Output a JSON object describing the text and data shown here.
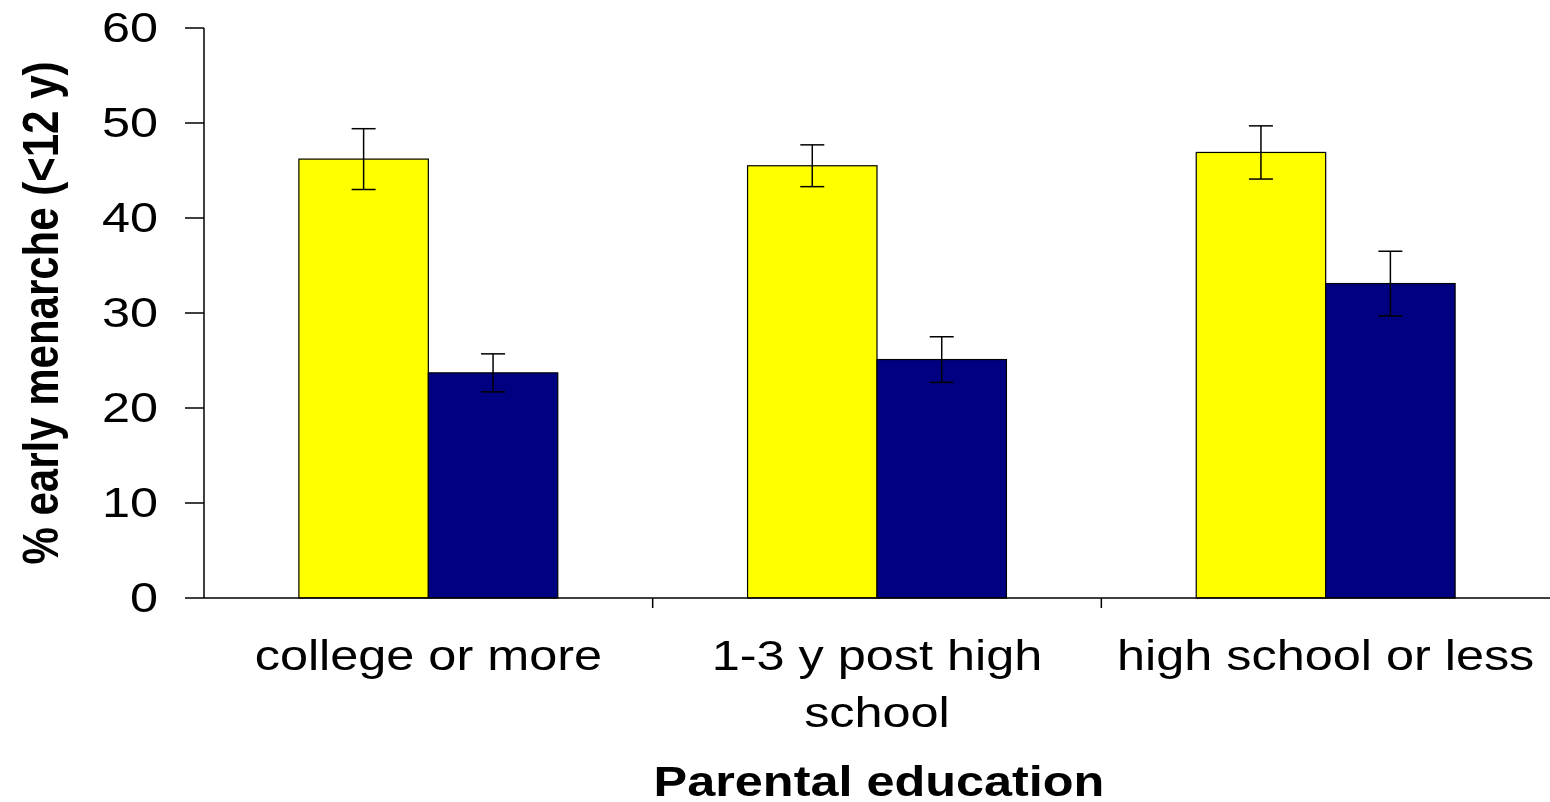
{
  "chart_data": {
    "type": "bar",
    "xlabel": "Parental education",
    "ylabel": "% early menarche (<12 y)",
    "categories": [
      "college or more",
      "1-3 y post high school",
      "high school or less"
    ],
    "series": [
      {
        "color": "#ffff00",
        "values": [
          46.2,
          45.5,
          46.9
        ],
        "errors": [
          3.2,
          2.2,
          2.8
        ]
      },
      {
        "color": "#000080",
        "values": [
          23.7,
          25.1,
          33.1
        ],
        "errors": [
          2.0,
          2.4,
          3.4
        ]
      }
    ],
    "ylim": [
      0,
      60
    ],
    "yticks": [
      0,
      10,
      20,
      30,
      40,
      50,
      60
    ]
  }
}
